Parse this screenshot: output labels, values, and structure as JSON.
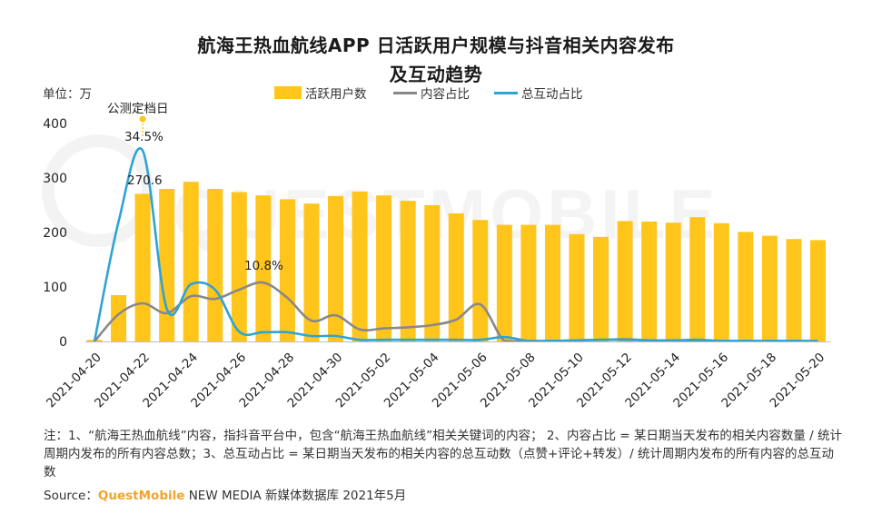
{
  "chart_data": {
    "type": "bar+line",
    "title_line1": "航海王热血航线APP 日活跃用户规模与抖音相关内容发布",
    "title_line2": "及互动趋势",
    "unit_label": "单位：万",
    "categories": [
      "2021-04-20",
      "2021-04-21",
      "2021-04-22",
      "2021-04-23",
      "2021-04-24",
      "2021-04-25",
      "2021-04-26",
      "2021-04-27",
      "2021-04-28",
      "2021-04-29",
      "2021-04-30",
      "2021-05-01",
      "2021-05-02",
      "2021-05-03",
      "2021-05-04",
      "2021-05-05",
      "2021-05-06",
      "2021-05-07",
      "2021-05-08",
      "2021-05-09",
      "2021-05-10",
      "2021-05-11",
      "2021-05-12",
      "2021-05-13",
      "2021-05-14",
      "2021-05-15",
      "2021-05-16",
      "2021-05-17",
      "2021-05-18",
      "2021-05-19",
      "2021-05-20"
    ],
    "x_tick_labels": [
      "2021-04-20",
      "2021-04-22",
      "2021-04-24",
      "2021-04-26",
      "2021-04-28",
      "2021-04-30",
      "2021-05-02",
      "2021-05-04",
      "2021-05-06",
      "2021-05-08",
      "2021-05-10",
      "2021-05-12",
      "2021-05-14",
      "2021-05-16",
      "2021-05-18",
      "2021-05-20"
    ],
    "ylim": [
      0,
      400
    ],
    "y_ticks": [
      "0",
      "100",
      "200",
      "300",
      "400"
    ],
    "series": [
      {
        "name": "活跃用户数",
        "kind": "bar",
        "color": "#ffc51a",
        "values": [
          3,
          85,
          271,
          280,
          293,
          280,
          274,
          268,
          261,
          253,
          267,
          275,
          268,
          258,
          250,
          235,
          223,
          214,
          214,
          214,
          197,
          192,
          221,
          220,
          218,
          228,
          217,
          201,
          194,
          188,
          186
        ]
      },
      {
        "name": "内容占比",
        "kind": "line",
        "color": "#888888",
        "values": [
          0,
          50,
          70,
          52,
          83,
          78,
          95,
          108,
          80,
          38,
          48,
          22,
          24,
          26,
          30,
          40,
          68,
          1,
          1,
          1,
          2,
          3,
          4,
          2,
          2,
          2,
          1,
          1,
          1,
          1,
          1
        ]
      },
      {
        "name": "总互动占比",
        "kind": "line",
        "color": "#2ea3d4",
        "values": [
          0,
          220,
          350,
          60,
          105,
          95,
          18,
          17,
          17,
          10,
          10,
          3,
          3,
          3,
          3,
          3,
          3,
          8,
          1,
          1,
          2,
          3,
          3,
          2,
          2,
          3,
          1,
          1,
          1,
          1,
          1
        ]
      }
    ],
    "annotations": [
      {
        "text": "公测定档日",
        "target": "2021-04-22"
      },
      {
        "text": "34.5%",
        "target": "2021-04-22"
      },
      {
        "text": "270.6",
        "target": "2021-04-22"
      },
      {
        "text": "10.8%",
        "target": "2021-04-27"
      }
    ],
    "watermark": "QUESTMOBILE"
  },
  "notes": "注：1、“航海王热血航线”内容，指抖音平台中，包含“航海王热血航线”相关关键词的内容； 2、内容占比 = 某日期当天发布的相关内容数量 / 统计周期内发布的所有内容总数；3、总互动占比 = 某日期当天发布的相关内容的总互动数（点赞+评论+转发）/ 统计周期内发布的所有内容的总互动数",
  "source": {
    "prefix": "Source：",
    "brand": "QuestMobile",
    "rest": "NEW MEDIA 新媒体数据库 2021年5月"
  }
}
